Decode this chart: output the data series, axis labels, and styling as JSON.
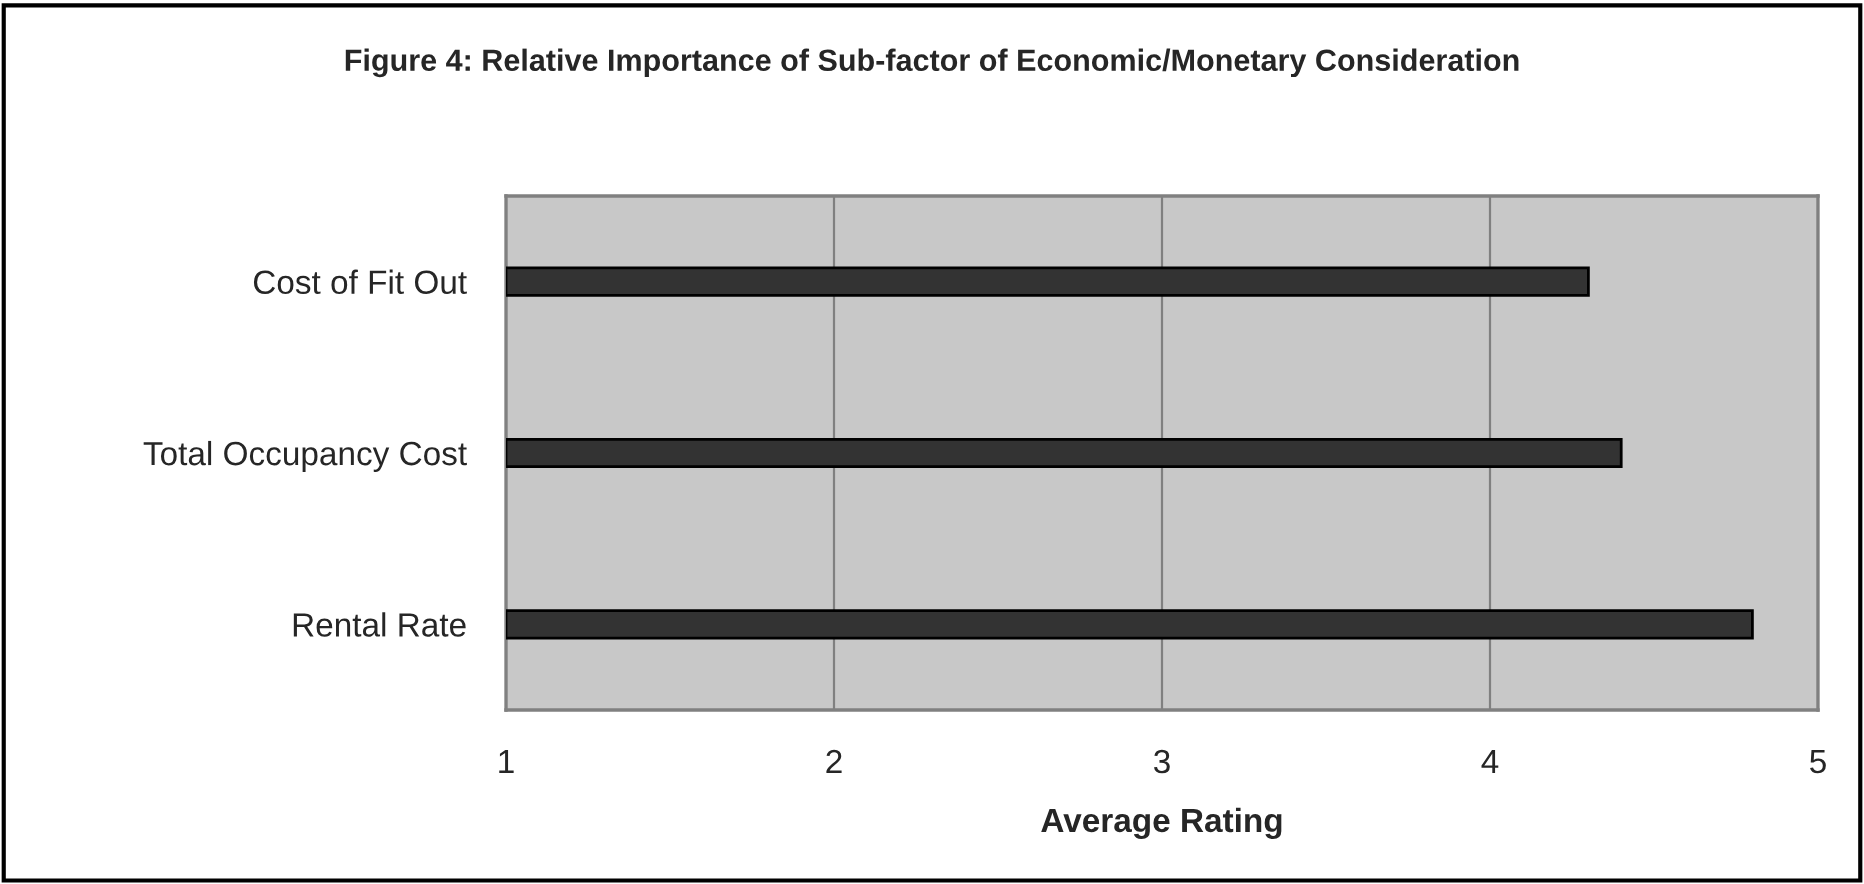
{
  "chart_data": {
    "type": "bar",
    "orientation": "horizontal",
    "title": "Figure 4: Relative Importance of Sub-factor of Economic/Monetary Consideration",
    "xlabel": "Average Rating",
    "categories": [
      "Cost of Fit Out",
      "Total Occupancy Cost",
      "Rental Rate"
    ],
    "values": [
      4.3,
      4.4,
      4.8
    ],
    "color": "#333333",
    "xlim": [
      1,
      5
    ],
    "xticks": [
      1,
      2,
      3,
      4,
      5
    ],
    "grid": "x"
  }
}
